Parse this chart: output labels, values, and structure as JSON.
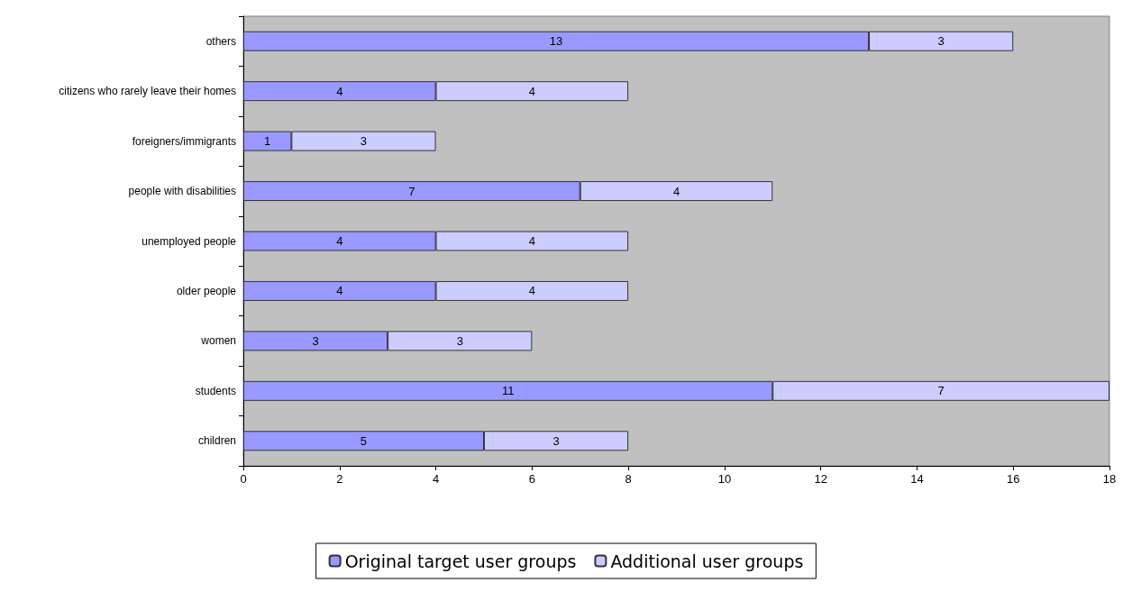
{
  "chart_data": {
    "type": "bar",
    "orientation": "horizontal",
    "stacked": true,
    "categories": [
      "others",
      "citizens who rarely leave their homes",
      "foreigners/immigrants",
      "people with disabilities",
      "unemployed people",
      "older people",
      "women",
      "students",
      "children"
    ],
    "series": [
      {
        "name": "Original target user groups",
        "color": "#9999ff",
        "values": [
          13,
          4,
          1,
          7,
          4,
          4,
          3,
          11,
          5
        ]
      },
      {
        "name": "Additional user groups",
        "color": "#ccccff",
        "values": [
          3,
          4,
          3,
          4,
          4,
          4,
          3,
          7,
          3
        ]
      }
    ],
    "xlim": [
      0,
      18
    ],
    "xticks": [
      0,
      2,
      4,
      6,
      8,
      10,
      12,
      14,
      16,
      18
    ],
    "data_labels": true,
    "legend": "bottom",
    "grid": false
  }
}
